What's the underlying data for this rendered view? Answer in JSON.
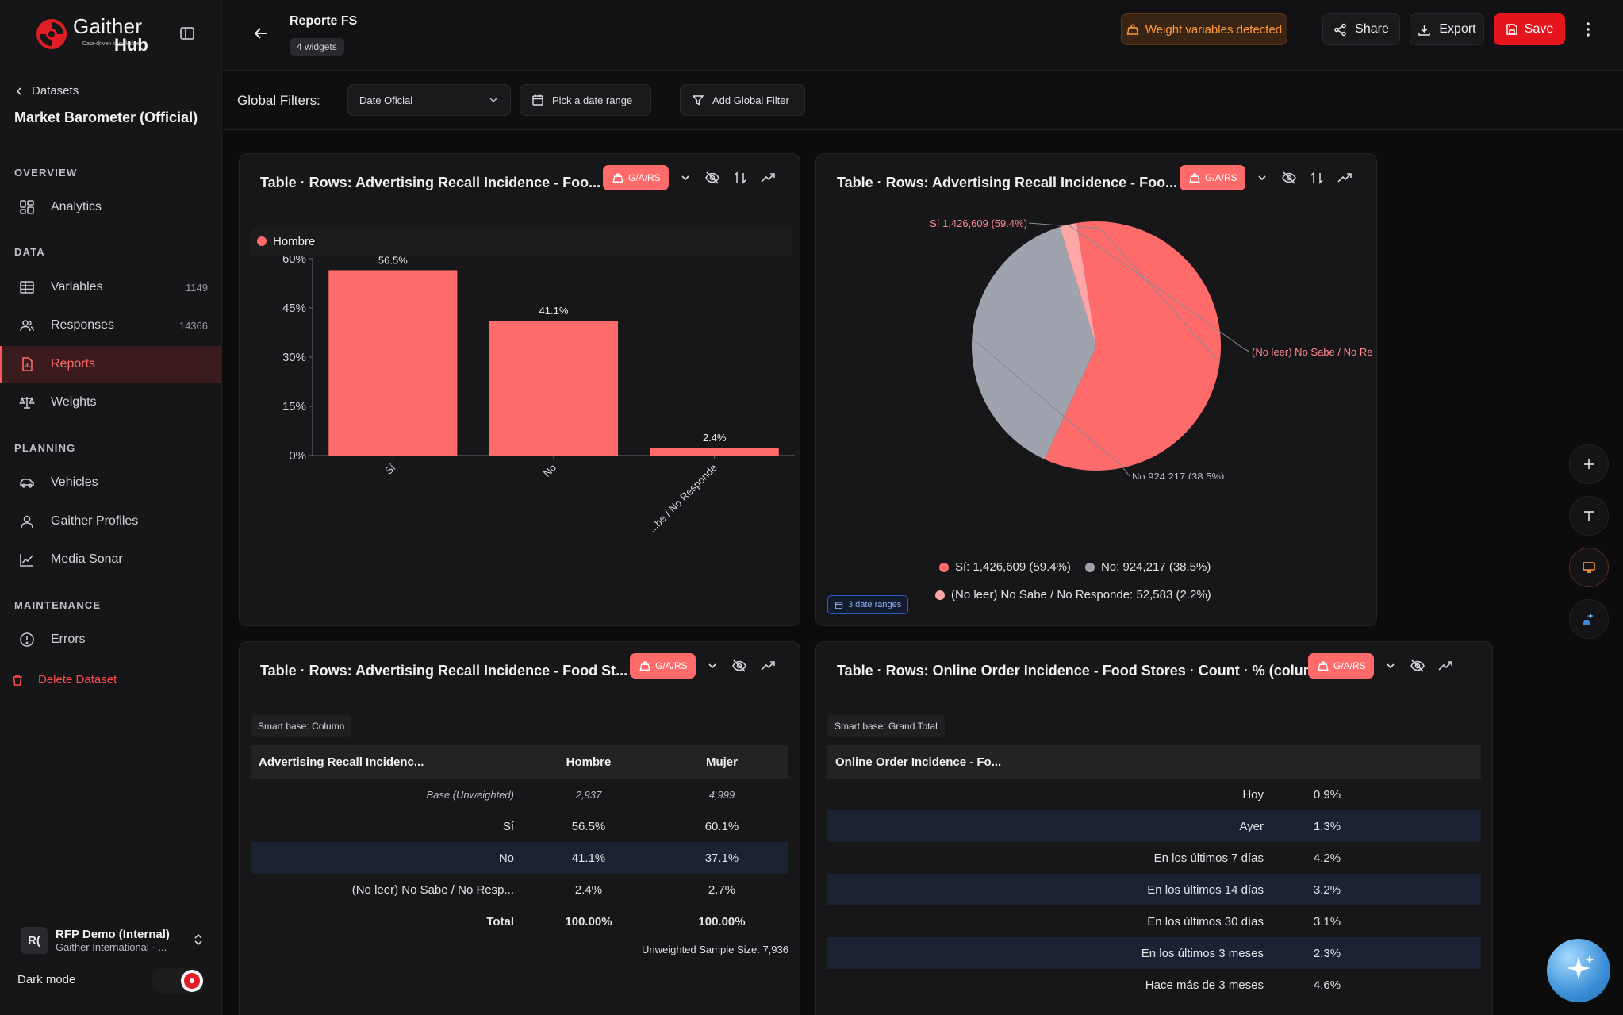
{
  "brand": {
    "name": "Gaither",
    "tagline": "Data-driven knowledge",
    "hub": "Hub"
  },
  "sidebar": {
    "back_label": "Datasets",
    "dataset_title": "Market Barometer (Official)",
    "sections": {
      "overview": "OVERVIEW",
      "data": "DATA",
      "planning": "PLANNING",
      "maintenance": "MAINTENANCE"
    },
    "items": {
      "analytics": "Analytics",
      "variables": "Variables",
      "variables_count": "1149",
      "responses": "Responses",
      "responses_count": "14366",
      "reports": "Reports",
      "weights": "Weights",
      "vehicles": "Vehicles",
      "gaither_profiles": "Gaither Profiles",
      "media_sonar": "Media Sonar",
      "errors": "Errors"
    },
    "delete_label": "Delete Dataset",
    "org": {
      "initials": "R(",
      "name": "RFP Demo (Internal)",
      "sub": "Gaither International · ..."
    },
    "dark_mode_label": "Dark mode"
  },
  "topbar": {
    "report_title": "Reporte FS",
    "widgets_badge": "4 widgets",
    "warning_label": "Weight variables detected",
    "share_label": "Share",
    "export_label": "Export",
    "save_label": "Save"
  },
  "filters": {
    "label": "Global Filters:",
    "date_select": "Date Oficial",
    "date_range": "Pick a date range",
    "add_filter": "Add Global Filter"
  },
  "colors": {
    "accent": "#ff6b6b",
    "grey": "#9ea3ad",
    "light_pink": "#ffa6a6",
    "danger": "#e5141d",
    "warning": "#ff9a3c"
  },
  "widgets": {
    "w1": {
      "title": "Table · Rows: Advertising Recall Incidence - Foo...",
      "tag": "G/A/RS",
      "legend": "Hombre"
    },
    "w2": {
      "title": "Table · Rows: Advertising Recall Incidence - Foo...",
      "tag": "G/A/RS",
      "date_ranges": "3 date ranges",
      "legend": [
        "Sí: 1,426,609 (59.4%)",
        "No: 924,217 (38.5%)",
        "(No leer) No Sabe / No Responde: 52,583 (2.2%)"
      ]
    },
    "w3": {
      "title": "Table · Rows: Advertising Recall Incidence - Food St...",
      "tag": "G/A/RS",
      "smart_base": "Smart base: Column",
      "headers": [
        "Advertising Recall Incidenc...",
        "Hombre",
        "Mujer"
      ],
      "rows": [
        [
          "Base (Unweighted)",
          "2,937",
          "4,999"
        ],
        [
          "Sí",
          "56.5%",
          "60.1%"
        ],
        [
          "No",
          "41.1%",
          "37.1%"
        ],
        [
          "(No leer) No Sabe / No Resp...",
          "2.4%",
          "2.7%"
        ],
        [
          "Total",
          "100.00%",
          "100.00%"
        ]
      ],
      "sample_size": "Unweighted Sample Size: 7,936"
    },
    "w4": {
      "title": "Table · Rows: Online Order Incidence - Food Stores · Count · % (column)",
      "tag": "G/A/RS",
      "smart_base": "Smart base: Grand Total",
      "header": "Online Order Incidence - Fo...",
      "rows": [
        [
          "Hoy",
          "0.9%"
        ],
        [
          "Ayer",
          "1.3%"
        ],
        [
          "En los últimos 7 días",
          "4.2%"
        ],
        [
          "En los últimos 14 días",
          "3.2%"
        ],
        [
          "En los últimos 30 días",
          "3.1%"
        ],
        [
          "En los últimos 3 meses",
          "2.3%"
        ],
        [
          "Hace más de 3 meses",
          "4.6%"
        ]
      ]
    }
  },
  "chart_data": [
    {
      "type": "bar",
      "categories": [
        "Sí",
        "No",
        "(No leer) No Sabe / No Responde"
      ],
      "category_labels_visible": [
        "Sí",
        "No",
        "...be / No Responde"
      ],
      "series": [
        {
          "name": "Hombre",
          "values": [
            56.5,
            41.1,
            2.4
          ]
        }
      ],
      "data_labels": [
        "56.5%",
        "41.1%",
        "2.4%"
      ],
      "y_ticks": [
        "0%",
        "15%",
        "30%",
        "45%",
        "60%"
      ],
      "ylim": [
        0,
        60
      ],
      "legend": "top-left",
      "color": "#ff6b6b"
    },
    {
      "type": "pie",
      "slices": [
        {
          "label": "Sí",
          "value": 1426609,
          "percent": 59.4,
          "color": "#ff6b6b",
          "callout": "Sí 1,426,609 (59.4%)"
        },
        {
          "label": "No",
          "value": 924217,
          "percent": 38.5,
          "color": "#9ea3ad",
          "callout": "No 924,217 (38.5%)"
        },
        {
          "label": "(No leer) No Sabe / No Responde",
          "value": 52583,
          "percent": 2.2,
          "color": "#ffa6a6",
          "callout": "(No leer) No Sabe / No Re"
        }
      ],
      "legend": "bottom"
    }
  ]
}
